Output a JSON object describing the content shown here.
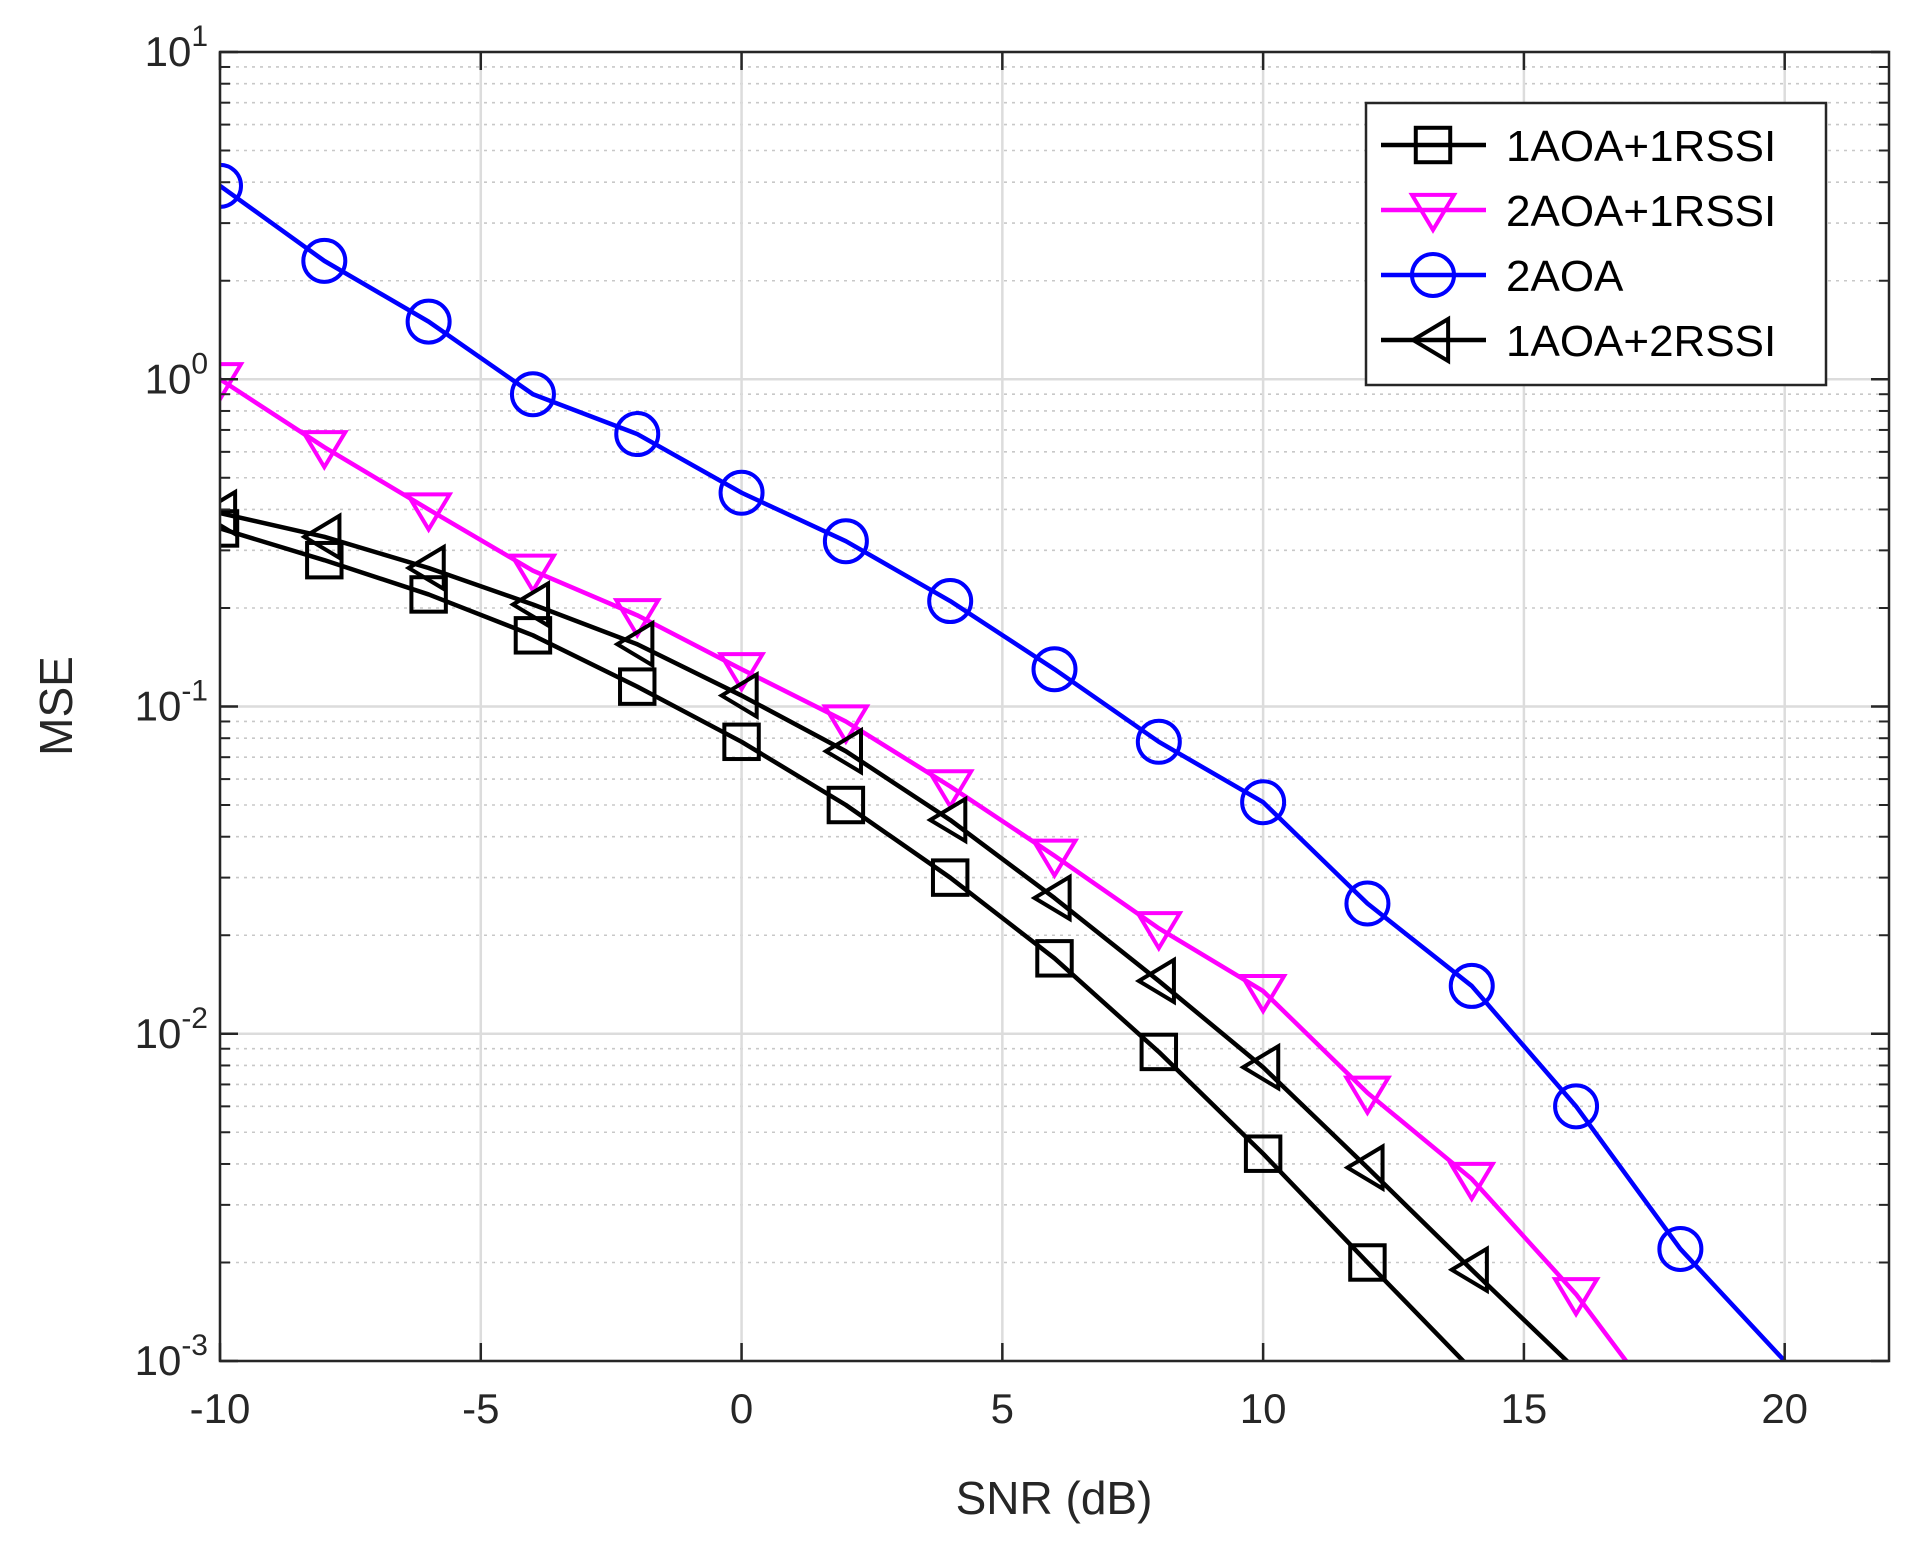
{
  "chart_data": {
    "type": "line",
    "title": "",
    "xlabel": "SNR (dB)",
    "ylabel": "MSE",
    "xscale": "linear",
    "yscale": "log",
    "xlim": [
      -10,
      22
    ],
    "ylim": [
      0.001,
      10
    ],
    "xticks": [
      -10,
      -5,
      0,
      5,
      10,
      15,
      20
    ],
    "xtick_labels": [
      "-10",
      "-5",
      "0",
      "5",
      "10",
      "15",
      "20"
    ],
    "yticks": [
      0.001,
      0.01,
      0.1,
      1,
      10
    ],
    "ytick_labels": [
      {
        "base": "10",
        "exp": "-3"
      },
      {
        "base": "10",
        "exp": "-2"
      },
      {
        "base": "10",
        "exp": "-1"
      },
      {
        "base": "10",
        "exp": "0"
      },
      {
        "base": "10",
        "exp": "1"
      }
    ],
    "grid": true,
    "minor_grid": true,
    "legend_position": "top-right",
    "series": [
      {
        "name": "1AOA+1RSSI",
        "color": "#000000",
        "marker": "square",
        "x": [
          -10,
          -8,
          -6,
          -4,
          -2,
          0,
          2,
          4,
          6,
          8,
          10,
          12,
          14
        ],
        "y": [
          0.35,
          0.28,
          0.22,
          0.165,
          0.115,
          0.078,
          0.05,
          0.03,
          0.017,
          0.0088,
          0.0043,
          0.002,
          0.00094
        ]
      },
      {
        "name": "2AOA+1RSSI",
        "color": "#ff00ff",
        "marker": "triangle-down",
        "x": [
          -10,
          -8,
          -6,
          -4,
          -2,
          0,
          2,
          4,
          6,
          8,
          10,
          12,
          14,
          16,
          17
        ],
        "y": [
          1.0,
          0.62,
          0.4,
          0.26,
          0.19,
          0.13,
          0.09,
          0.057,
          0.035,
          0.021,
          0.0135,
          0.0066,
          0.0036,
          0.0016,
          0.00098
        ]
      },
      {
        "name": "2AOA",
        "color": "#0000ff",
        "marker": "circle",
        "x": [
          -10,
          -8,
          -6,
          -4,
          -2,
          0,
          2,
          4,
          6,
          8,
          10,
          12,
          14,
          16,
          18,
          20
        ],
        "y": [
          3.9,
          2.3,
          1.5,
          0.9,
          0.68,
          0.45,
          0.32,
          0.21,
          0.13,
          0.078,
          0.051,
          0.025,
          0.014,
          0.006,
          0.0022,
          0.001
        ]
      },
      {
        "name": "1AOA+2RSSI",
        "color": "#000000",
        "marker": "triangle-left",
        "x": [
          -10,
          -8,
          -6,
          -4,
          -2,
          0,
          2,
          4,
          6,
          8,
          10,
          12,
          14,
          16
        ],
        "y": [
          0.39,
          0.33,
          0.265,
          0.205,
          0.155,
          0.108,
          0.073,
          0.045,
          0.026,
          0.0145,
          0.0079,
          0.0039,
          0.0019,
          0.00094
        ]
      }
    ]
  }
}
